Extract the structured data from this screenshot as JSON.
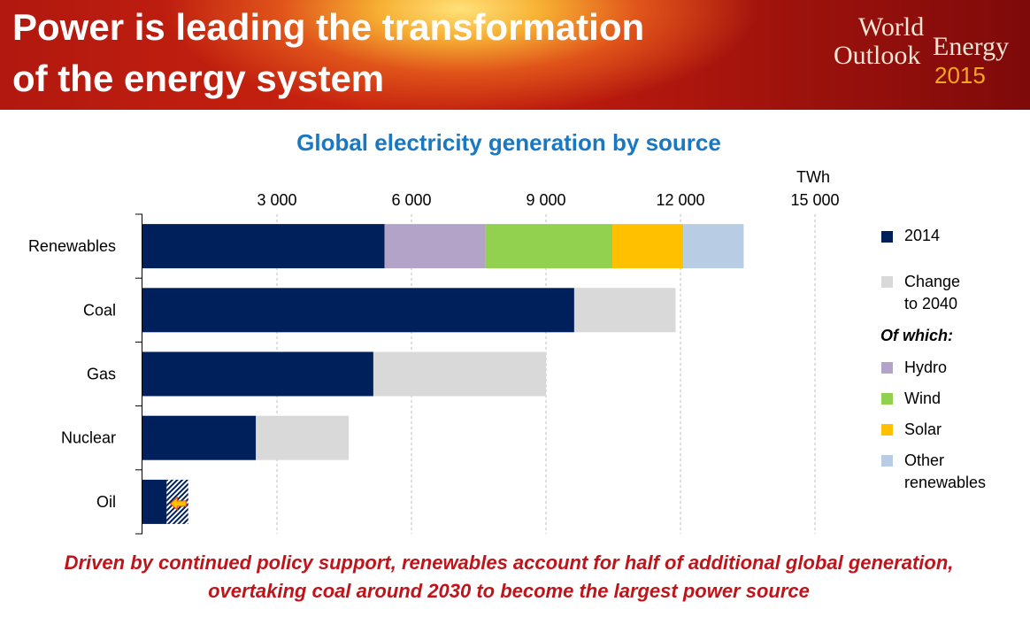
{
  "header": {
    "headline_line1": "Power is leading the transformation",
    "headline_line2": "of the energy system",
    "logo_world": "World",
    "logo_energy": "Energy",
    "logo_outlook": "Outlook",
    "logo_year": "2015"
  },
  "footer": {
    "line1": "Driven by continued policy support, renewables account for half of additional global generation,",
    "line2": "overtaking coal around 2030 to become the largest power source"
  },
  "legend": {
    "item_2014": "2014",
    "change_line1": "Change",
    "change_line2": "to 2040",
    "of_which": "Of which:",
    "hydro": "Hydro",
    "wind": "Wind",
    "solar": "Solar",
    "other_line1": "Other",
    "other_line2": "renewables"
  },
  "colors": {
    "base_2014": "#00205b",
    "change": "#d9d9d9",
    "hydro": "#b4a3c9",
    "wind": "#92d050",
    "solar": "#ffc000",
    "other": "#b8cce4",
    "oil_arrow": "#ffc000",
    "title": "#1a78c2",
    "footer": "#c0141b"
  },
  "chart_data": {
    "type": "bar",
    "orientation": "horizontal",
    "stacked": true,
    "title": "Global electricity generation by source",
    "unit_label": "TWh",
    "xlim": [
      0,
      15000
    ],
    "x_ticks": [
      3000,
      6000,
      9000,
      12000,
      15000
    ],
    "x_tick_labels": [
      "3 000",
      "6 000",
      "9 000",
      "12 000",
      "15 000"
    ],
    "grid": true,
    "legend_position": "right",
    "categories": [
      "Renewables",
      "Coal",
      "Gas",
      "Nuclear",
      "Oil"
    ],
    "series": [
      {
        "name": "2014",
        "key": "base_2014",
        "values": [
          5400,
          9630,
          5150,
          2530,
          540
        ]
      },
      {
        "name": "Hydro",
        "key": "hydro",
        "values": [
          2250,
          0,
          0,
          0,
          0
        ]
      },
      {
        "name": "Wind",
        "key": "wind",
        "values": [
          2830,
          0,
          0,
          0,
          0
        ]
      },
      {
        "name": "Solar",
        "key": "solar",
        "values": [
          1580,
          0,
          0,
          0,
          0
        ]
      },
      {
        "name": "Other renewables",
        "key": "other",
        "values": [
          1350,
          0,
          0,
          0,
          0
        ]
      },
      {
        "name": "Change to 2040",
        "key": "change",
        "values": [
          0,
          2260,
          3850,
          2070,
          0
        ]
      }
    ],
    "oil_change_to_2040": -480,
    "oil_2040_level": 540,
    "oil_2014_level": 1020,
    "oil_note": "Oil declines to 2040 (hatched area shows reduction from 2014 level)"
  }
}
